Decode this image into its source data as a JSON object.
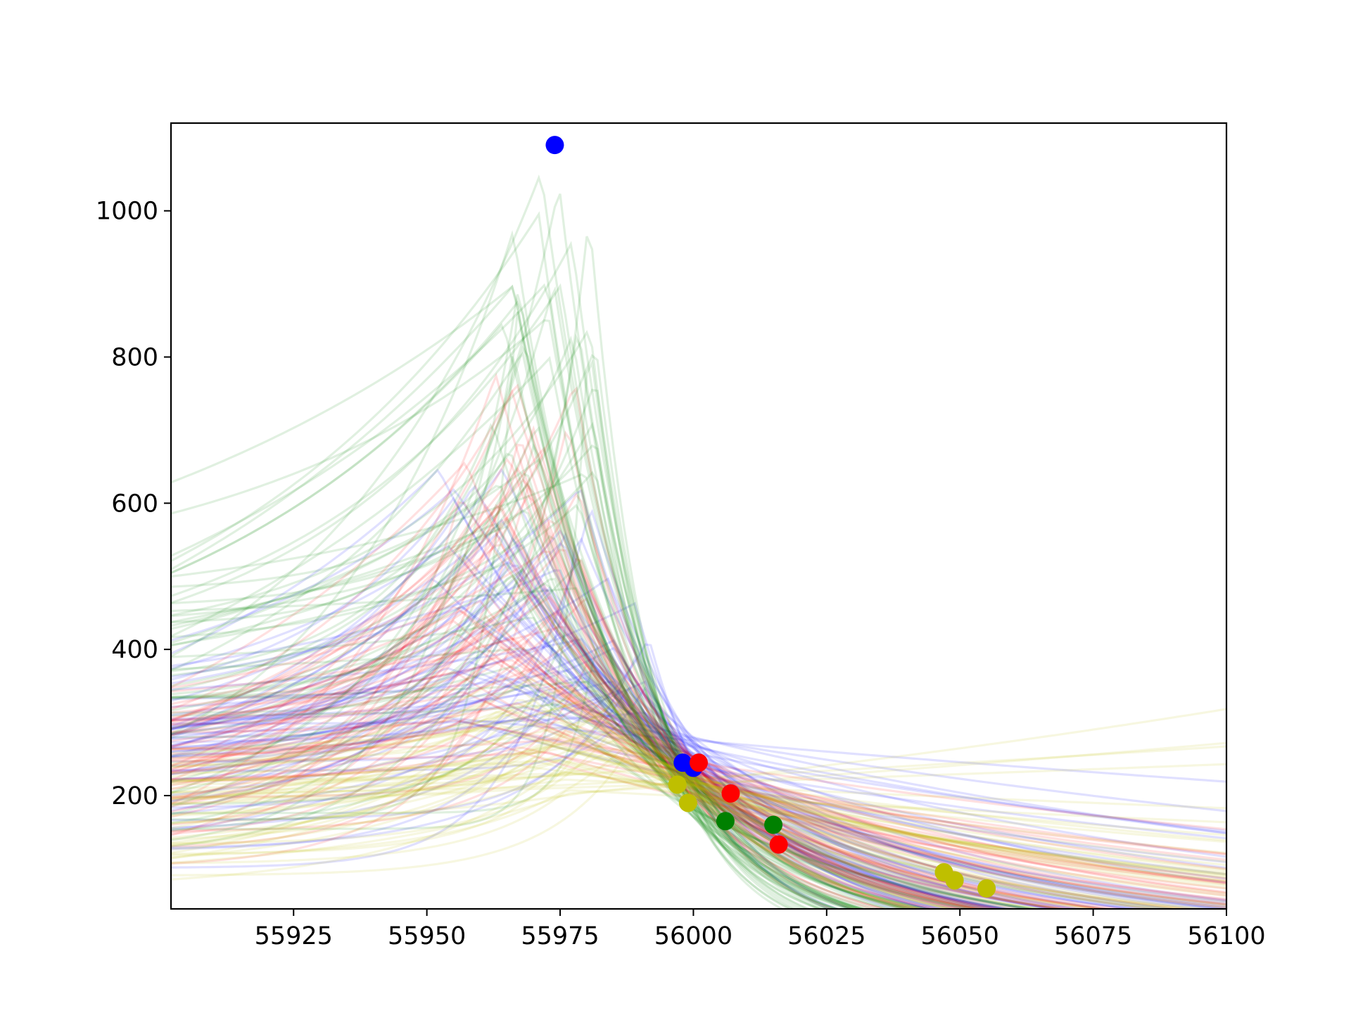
{
  "chart_data": {
    "type": "scatter",
    "title": "",
    "xlabel": "",
    "ylabel": "",
    "xlim": [
      55902,
      56100
    ],
    "ylim": [
      45,
      1120
    ],
    "x_ticks": [
      55925,
      55950,
      55975,
      56000,
      56025,
      56050,
      56075,
      56100
    ],
    "y_ticks": [
      200,
      400,
      600,
      800,
      1000
    ],
    "grid": false,
    "legend": "none",
    "colors": {
      "blue": "#0000ff",
      "red": "#ff0000",
      "green": "#008000",
      "yellow": "#bfbf00",
      "axis": "#000000"
    },
    "series": [
      {
        "color": "blue",
        "points": [
          [
            55974,
            1090
          ],
          [
            55998,
            245
          ],
          [
            56000,
            238
          ]
        ]
      },
      {
        "color": "red",
        "points": [
          [
            56001,
            245
          ],
          [
            56007,
            203
          ],
          [
            56016,
            133
          ]
        ]
      },
      {
        "color": "green",
        "points": [
          [
            56006,
            165
          ],
          [
            56015,
            160
          ]
        ]
      },
      {
        "color": "yellow",
        "points": [
          [
            55997,
            215
          ],
          [
            55999,
            190
          ],
          [
            56047,
            95
          ],
          [
            56049,
            84
          ],
          [
            56055,
            73
          ]
        ]
      }
    ],
    "model_curves": {
      "description": "semi-transparent light-curve model realizations per color",
      "opacity": 0.12,
      "counts": {
        "blue": 60,
        "red": 60,
        "green": 60,
        "yellow": 50
      }
    }
  }
}
